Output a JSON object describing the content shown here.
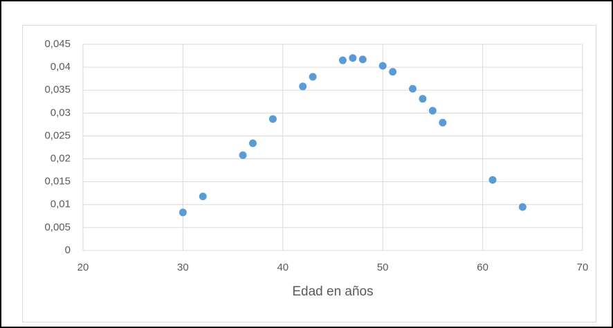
{
  "chart_data": {
    "type": "scatter",
    "x_label": "Edad en años",
    "x": [
      30,
      32,
      36,
      37,
      39,
      42,
      43,
      46,
      47,
      48,
      50,
      51,
      53,
      54,
      55,
      56,
      61,
      64
    ],
    "values": [
      0.0083,
      0.0118,
      0.0208,
      0.0234,
      0.0287,
      0.0358,
      0.0379,
      0.0415,
      0.042,
      0.0417,
      0.0403,
      0.039,
      0.0353,
      0.0331,
      0.0305,
      0.0279,
      0.0154,
      0.0095
    ],
    "color": "#5b9bd5",
    "xlim": [
      20,
      70
    ],
    "xticks": [
      20,
      30,
      40,
      50,
      60,
      70
    ],
    "ylim": [
      0,
      0.045
    ],
    "yticks": [
      0,
      {
        "value": 0.005,
        "label": "0,005"
      },
      {
        "value": 0.01,
        "label": "0,01"
      },
      {
        "value": 0.015,
        "label": "0,015"
      },
      {
        "value": 0.02,
        "label": "0,02"
      },
      {
        "value": 0.025,
        "label": "0,025"
      },
      {
        "value": 0.03,
        "label": "0,03"
      },
      {
        "value": 0.035,
        "label": "0,035"
      },
      {
        "value": 0.04,
        "label": "0,04"
      },
      {
        "value": 0.045,
        "label": "0,045"
      }
    ],
    "grid": true
  }
}
